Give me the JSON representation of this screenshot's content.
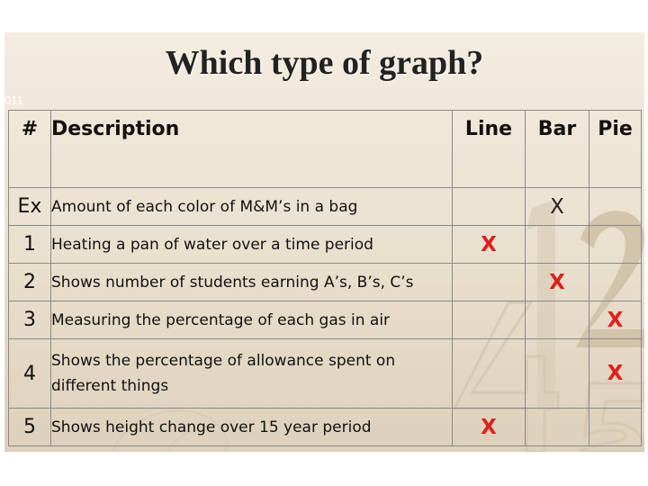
{
  "slide": {
    "title": "Which type of graph?",
    "corner_mark": "011"
  },
  "table": {
    "headers": {
      "number": "#",
      "description": "Description",
      "line": "Line",
      "bar": "Bar",
      "pie": "Pie"
    },
    "rows": [
      {
        "num": "Ex",
        "description": "Amount of each color of M&M’s in a bag",
        "line": "",
        "bar": "X",
        "pie": ""
      },
      {
        "num": "1",
        "description": "Heating a pan of water over a time period",
        "line": "X",
        "bar": "",
        "pie": ""
      },
      {
        "num": "2",
        "description": "Shows number of students earning A’s, B’s, C’s",
        "line": "",
        "bar": "X",
        "pie": ""
      },
      {
        "num": "3",
        "description": "Measuring the percentage of each gas in air",
        "line": "",
        "bar": "",
        "pie": "X"
      },
      {
        "num": "4",
        "description": "Shows the percentage of allowance spent on different things",
        "line": "",
        "bar": "",
        "pie": "X"
      },
      {
        "num": "5",
        "description": "Shows height change over 15 year period",
        "line": "X",
        "bar": "",
        "pie": ""
      }
    ]
  },
  "colors": {
    "answer_mark": "#e0201c",
    "example_mark": "#222222",
    "background": "#ece3d3"
  }
}
